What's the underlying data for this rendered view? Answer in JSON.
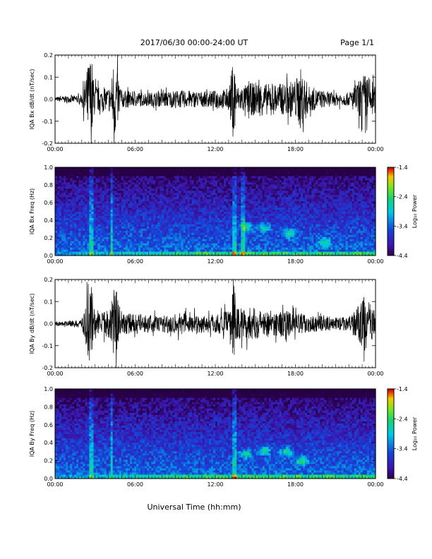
{
  "header": {
    "title": "2017/06/30  00:00-24:00 UT",
    "page": "Page 1/1"
  },
  "footer": {
    "xlabel": "Universal Time (hh:mm)"
  },
  "x_tick_labels": [
    "00:00",
    "06:00",
    "12:00",
    "18:00",
    "00:00"
  ],
  "chart_data": [
    {
      "type": "line",
      "ylabel": "IQA Bx dB/dt (nT/sec)",
      "xlim": [
        "00:00",
        "24:00"
      ],
      "ylim": [
        -0.2,
        0.2
      ],
      "y_tick_labels": [
        "-0.2",
        "-0.1",
        "0.0",
        "0.1",
        "0.2"
      ],
      "series": [
        {
          "x_hours": [
            0,
            1,
            2,
            2.6,
            2.75,
            2.9,
            3.5,
            4.2,
            4.4,
            5,
            6,
            7,
            8,
            9,
            10,
            11,
            12,
            13,
            13.4,
            13.6,
            14,
            15,
            16,
            17,
            18,
            18.4,
            19,
            20,
            21,
            22,
            22.8,
            23.2,
            23.6,
            24
          ],
          "envelope": [
            0.01,
            0.015,
            0.02,
            0.2,
            0.2,
            0.08,
            0.04,
            0.06,
            0.2,
            0.04,
            0.035,
            0.03,
            0.035,
            0.04,
            0.04,
            0.035,
            0.04,
            0.05,
            0.2,
            0.06,
            0.06,
            0.08,
            0.07,
            0.07,
            0.09,
            0.14,
            0.06,
            0.04,
            0.03,
            0.03,
            0.09,
            0.12,
            0.1,
            0.06
          ]
        }
      ]
    },
    {
      "type": "heatmap",
      "ylabel": "IQA Bx Freq (Hz)",
      "xlim": [
        "00:00",
        "24:00"
      ],
      "ylim": [
        0.0,
        1.0
      ],
      "y_tick_labels": [
        "0.0",
        "0.2",
        "0.4",
        "0.6",
        "0.8",
        "1.0"
      ],
      "colorbar": {
        "label": "Log₁₀ Power",
        "range": [
          -4.4,
          -1.4
        ],
        "tick_labels": [
          "-1.4",
          "-2.4",
          "-3.4",
          "-4.4"
        ]
      },
      "vertical_bands_hours": [
        2.7,
        4.2,
        13.4,
        14.1
      ],
      "blobs": [
        {
          "hour": 14.3,
          "freq": 0.33
        },
        {
          "hour": 15.6,
          "freq": 0.32
        },
        {
          "hour": 17.5,
          "freq": 0.26
        },
        {
          "hour": 20.2,
          "freq": 0.15
        }
      ]
    },
    {
      "type": "line",
      "ylabel": "IQA By dB/dt (nT/sec)",
      "xlim": [
        "00:00",
        "24:00"
      ],
      "ylim": [
        -0.2,
        0.2
      ],
      "y_tick_labels": [
        "-0.2",
        "-0.1",
        "0.0",
        "0.1",
        "0.2"
      ],
      "series": [
        {
          "x_hours": [
            0,
            1,
            2,
            2.6,
            2.75,
            2.9,
            3.5,
            4.2,
            4.4,
            5,
            6,
            7,
            8,
            9,
            10,
            11,
            12,
            13,
            13.4,
            13.6,
            14,
            15,
            16,
            17,
            18,
            19,
            20,
            21,
            22,
            22.8,
            23.2,
            23.6,
            24
          ],
          "envelope": [
            0.008,
            0.012,
            0.02,
            0.2,
            0.2,
            0.08,
            0.05,
            0.07,
            0.2,
            0.05,
            0.045,
            0.04,
            0.04,
            0.05,
            0.05,
            0.04,
            0.045,
            0.06,
            0.2,
            0.08,
            0.08,
            0.07,
            0.06,
            0.06,
            0.05,
            0.04,
            0.035,
            0.03,
            0.03,
            0.09,
            0.13,
            0.1,
            0.05
          ]
        }
      ]
    },
    {
      "type": "heatmap",
      "ylabel": "IQA By Freq (Hz)",
      "xlim": [
        "00:00",
        "24:00"
      ],
      "ylim": [
        0.0,
        1.0
      ],
      "y_tick_labels": [
        "0.0",
        "0.2",
        "0.4",
        "0.6",
        "0.8",
        "1.0"
      ],
      "colorbar": {
        "label": "Log₁₀ Power",
        "range": [
          -4.4,
          -1.4
        ],
        "tick_labels": [
          "-1.4",
          "-2.4",
          "-3.4",
          "-4.4"
        ]
      },
      "vertical_bands_hours": [
        2.7,
        4.2,
        13.4
      ],
      "blobs": [
        {
          "hour": 14.3,
          "freq": 0.28
        },
        {
          "hour": 15.7,
          "freq": 0.32
        },
        {
          "hour": 17.3,
          "freq": 0.3
        },
        {
          "hour": 18.5,
          "freq": 0.2
        }
      ]
    }
  ]
}
